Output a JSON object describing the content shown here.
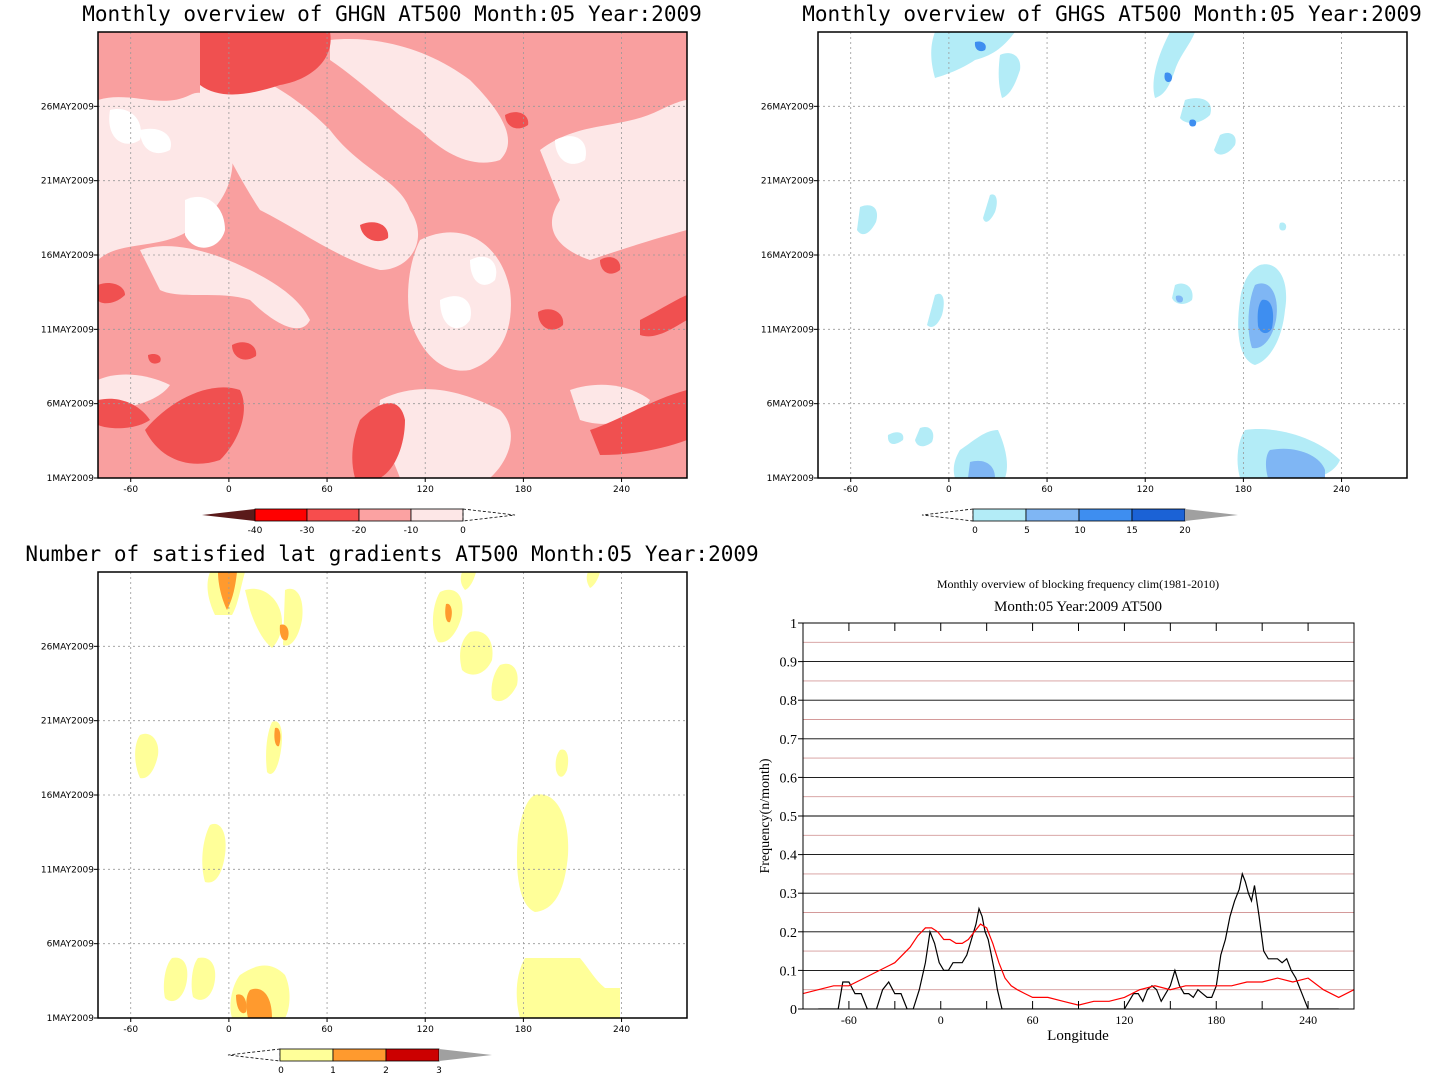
{
  "chart_data": [
    {
      "type": "heatmap",
      "title": "Monthly overview of GHGN AT500 Month:05 Year:2009",
      "x_ticks": [
        "-60",
        "0",
        "60",
        "120",
        "180",
        "240"
      ],
      "x_tick_values": [
        -60,
        0,
        60,
        120,
        180,
        240
      ],
      "xlim": [
        -80,
        280
      ],
      "y_ticks": [
        "1MAY2009",
        "6MAY2009",
        "11MAY2009",
        "16MAY2009",
        "21MAY2009",
        "26MAY2009"
      ],
      "y_tick_values": [
        1,
        6,
        11,
        16,
        21,
        26
      ],
      "ylim": [
        1,
        31
      ],
      "colorbar": {
        "levels": [
          "-40",
          "-30",
          "-20",
          "-10",
          "0"
        ],
        "colors": [
          "#5a1a1a",
          "#ff0000",
          "#f74d4d",
          "#fba2a2",
          "#fde7e7"
        ],
        "extensions": [
          "lower",
          "upper-open"
        ]
      },
      "fill_colors": {
        "level1": "#fde7e7",
        "level2": "#f99f9f",
        "level3": "#f05050"
      }
    },
    {
      "type": "heatmap",
      "title": "Monthly overview of GHGS AT500 Month:05 Year:2009",
      "x_ticks": [
        "-60",
        "0",
        "60",
        "120",
        "180",
        "240"
      ],
      "x_tick_values": [
        -60,
        0,
        60,
        120,
        180,
        240
      ],
      "xlim": [
        -80,
        280
      ],
      "y_ticks": [
        "1MAY2009",
        "6MAY2009",
        "11MAY2009",
        "16MAY2009",
        "21MAY2009",
        "26MAY2009"
      ],
      "y_tick_values": [
        1,
        6,
        11,
        16,
        21,
        26
      ],
      "ylim": [
        1,
        31
      ],
      "colorbar": {
        "levels": [
          "0",
          "5",
          "10",
          "15",
          "20"
        ],
        "colors": [
          "#b3ecf7",
          "#7fb6f4",
          "#3e8ef0",
          "#1b62d6",
          "#a0a0a0"
        ],
        "extensions": [
          "lower-open",
          "upper"
        ]
      }
    },
    {
      "type": "heatmap",
      "title": "Number of satisfied lat gradients AT500 Month:05 Year:2009",
      "x_ticks": [
        "-60",
        "0",
        "60",
        "120",
        "180",
        "240"
      ],
      "x_tick_values": [
        -60,
        0,
        60,
        120,
        180,
        240
      ],
      "xlim": [
        -80,
        280
      ],
      "y_ticks": [
        "1MAY2009",
        "6MAY2009",
        "11MAY2009",
        "16MAY2009",
        "21MAY2009",
        "26MAY2009"
      ],
      "y_tick_values": [
        1,
        6,
        11,
        16,
        21,
        26
      ],
      "ylim": [
        1,
        31
      ],
      "colorbar": {
        "levels": [
          "0",
          "1",
          "2",
          "3"
        ],
        "colors": [
          "#ffff99",
          "#ff9a2e",
          "#cc0000",
          "#a0a0a0"
        ],
        "extensions": [
          "lower-open",
          "upper"
        ]
      }
    },
    {
      "type": "line",
      "title": "Monthly overview of blocking frequency clim(1981-2010)",
      "subtitle": "Month:05 Year:2009  AT500",
      "xlabel": "Longitude",
      "ylabel": "Frequency(n/month)",
      "xlim": [
        -90,
        270
      ],
      "ylim": [
        0,
        1
      ],
      "x_ticks": [
        "-60",
        "0",
        "60",
        "120",
        "180",
        "240"
      ],
      "x_tick_values": [
        -60,
        0,
        60,
        120,
        180,
        240
      ],
      "y_ticks": [
        "0",
        "0.1",
        "0.2",
        "0.3",
        "0.4",
        "0.5",
        "0.6",
        "0.7",
        "0.8",
        "0.9",
        "1"
      ],
      "grid": true,
      "series": [
        {
          "color": "#000000",
          "x": [
            -80,
            -75,
            -70,
            -67,
            -64,
            -60,
            -56,
            -52,
            -48,
            -45,
            -42,
            -38,
            -34,
            -30,
            -26,
            -22,
            -18,
            -14,
            -10,
            -7,
            -4,
            -1,
            2,
            5,
            8,
            11,
            14,
            17,
            20,
            23,
            25,
            27,
            29,
            31,
            33,
            35,
            37,
            40,
            43,
            46,
            50,
            60,
            80,
            100,
            115,
            120,
            123,
            126,
            129,
            132,
            135,
            138,
            141,
            144,
            147,
            150,
            153,
            156,
            159,
            162,
            165,
            168,
            171,
            174,
            177,
            180,
            183,
            186,
            189,
            192,
            195,
            197,
            199,
            201,
            203,
            205,
            208,
            211,
            214,
            217,
            220,
            223,
            226,
            229,
            232,
            235,
            238,
            240,
            245,
            260
          ],
          "y": [
            0,
            0,
            0,
            0,
            0.07,
            0.07,
            0.04,
            0.04,
            0,
            0,
            0,
            0.05,
            0.07,
            0.04,
            0.04,
            0,
            0,
            0.05,
            0.12,
            0.2,
            0.17,
            0.12,
            0.1,
            0.1,
            0.12,
            0.12,
            0.12,
            0.14,
            0.18,
            0.22,
            0.26,
            0.24,
            0.2,
            0.18,
            0.14,
            0.1,
            0.05,
            0,
            0,
            0,
            0,
            0,
            0,
            0,
            0,
            0,
            0.02,
            0.04,
            0.04,
            0.02,
            0.05,
            0.06,
            0.05,
            0.02,
            0.04,
            0.06,
            0.1,
            0.06,
            0.04,
            0.04,
            0.03,
            0.05,
            0.04,
            0.03,
            0.03,
            0.06,
            0.14,
            0.18,
            0.24,
            0.28,
            0.31,
            0.35,
            0.33,
            0.3,
            0.28,
            0.32,
            0.24,
            0.15,
            0.13,
            0.13,
            0.13,
            0.12,
            0.13,
            0.1,
            0.08,
            0.05,
            0.02,
            0,
            0,
            0
          ]
        },
        {
          "color": "#ff0000",
          "x": [
            -90,
            -80,
            -70,
            -60,
            -50,
            -40,
            -30,
            -20,
            -15,
            -10,
            -6,
            -2,
            2,
            6,
            10,
            14,
            18,
            22,
            26,
            30,
            34,
            38,
            42,
            46,
            50,
            55,
            60,
            70,
            80,
            90,
            100,
            110,
            120,
            130,
            140,
            150,
            160,
            170,
            180,
            190,
            200,
            210,
            220,
            230,
            240,
            250,
            260,
            270
          ],
          "y": [
            0.04,
            0.05,
            0.06,
            0.06,
            0.08,
            0.1,
            0.12,
            0.16,
            0.19,
            0.21,
            0.21,
            0.2,
            0.18,
            0.18,
            0.17,
            0.17,
            0.18,
            0.2,
            0.22,
            0.21,
            0.17,
            0.12,
            0.08,
            0.06,
            0.05,
            0.04,
            0.03,
            0.03,
            0.02,
            0.01,
            0.02,
            0.02,
            0.03,
            0.05,
            0.06,
            0.05,
            0.06,
            0.06,
            0.06,
            0.06,
            0.07,
            0.07,
            0.08,
            0.07,
            0.08,
            0.05,
            0.03,
            0.05
          ]
        }
      ]
    }
  ]
}
